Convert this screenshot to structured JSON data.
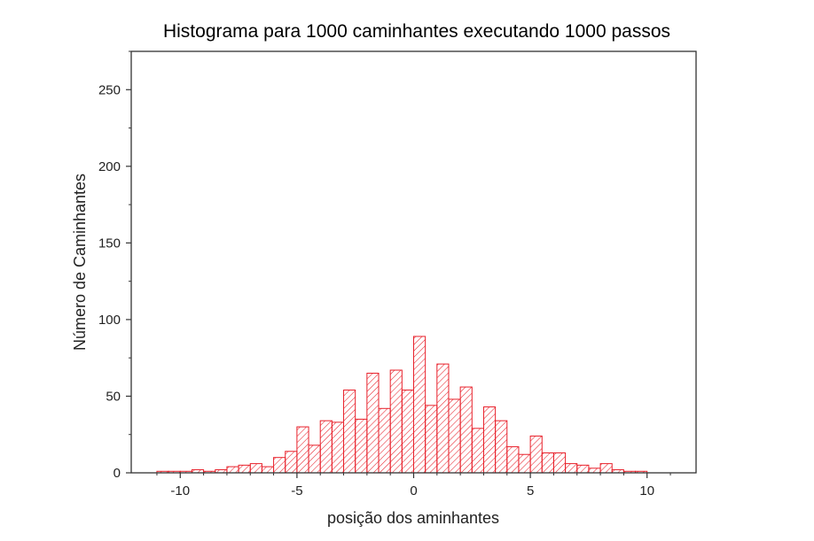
{
  "chart_data": {
    "type": "bar",
    "title": "Histograma para 1000 caminhantes executando 1000 passos",
    "xlabel": "posição dos aminhantes",
    "ylabel": "Número de Caminhantes",
    "xlim": [
      -12.1,
      12.1
    ],
    "ylim": [
      0,
      275
    ],
    "xticks": [
      -10,
      -5,
      0,
      5,
      10
    ],
    "yticks": [
      0,
      50,
      100,
      150,
      200,
      250
    ],
    "bin_width": 0.5,
    "bar_color": "#e8202a",
    "grid": false,
    "legend": "none",
    "bins": [
      {
        "x": -10.75,
        "count": 1
      },
      {
        "x": -10.25,
        "count": 1
      },
      {
        "x": -9.75,
        "count": 1
      },
      {
        "x": -9.25,
        "count": 2
      },
      {
        "x": -8.75,
        "count": 1
      },
      {
        "x": -8.25,
        "count": 2
      },
      {
        "x": -7.75,
        "count": 4
      },
      {
        "x": -7.25,
        "count": 5
      },
      {
        "x": -6.75,
        "count": 6
      },
      {
        "x": -6.25,
        "count": 4
      },
      {
        "x": -5.75,
        "count": 10
      },
      {
        "x": -5.25,
        "count": 14
      },
      {
        "x": -4.75,
        "count": 30
      },
      {
        "x": -4.25,
        "count": 18
      },
      {
        "x": -3.75,
        "count": 34
      },
      {
        "x": -3.25,
        "count": 33
      },
      {
        "x": -2.75,
        "count": 54
      },
      {
        "x": -2.25,
        "count": 35
      },
      {
        "x": -1.75,
        "count": 65
      },
      {
        "x": -1.25,
        "count": 42
      },
      {
        "x": -0.75,
        "count": 67
      },
      {
        "x": -0.25,
        "count": 54
      },
      {
        "x": 0.25,
        "count": 89
      },
      {
        "x": 0.75,
        "count": 44
      },
      {
        "x": 1.25,
        "count": 71
      },
      {
        "x": 1.75,
        "count": 48
      },
      {
        "x": 2.25,
        "count": 56
      },
      {
        "x": 2.75,
        "count": 29
      },
      {
        "x": 3.25,
        "count": 43
      },
      {
        "x": 3.75,
        "count": 34
      },
      {
        "x": 4.25,
        "count": 17
      },
      {
        "x": 4.75,
        "count": 12
      },
      {
        "x": 5.25,
        "count": 24
      },
      {
        "x": 5.75,
        "count": 13
      },
      {
        "x": 6.25,
        "count": 13
      },
      {
        "x": 6.75,
        "count": 6
      },
      {
        "x": 7.25,
        "count": 5
      },
      {
        "x": 7.75,
        "count": 3
      },
      {
        "x": 8.25,
        "count": 6
      },
      {
        "x": 8.75,
        "count": 2
      },
      {
        "x": 9.25,
        "count": 1
      },
      {
        "x": 9.75,
        "count": 1
      }
    ]
  }
}
